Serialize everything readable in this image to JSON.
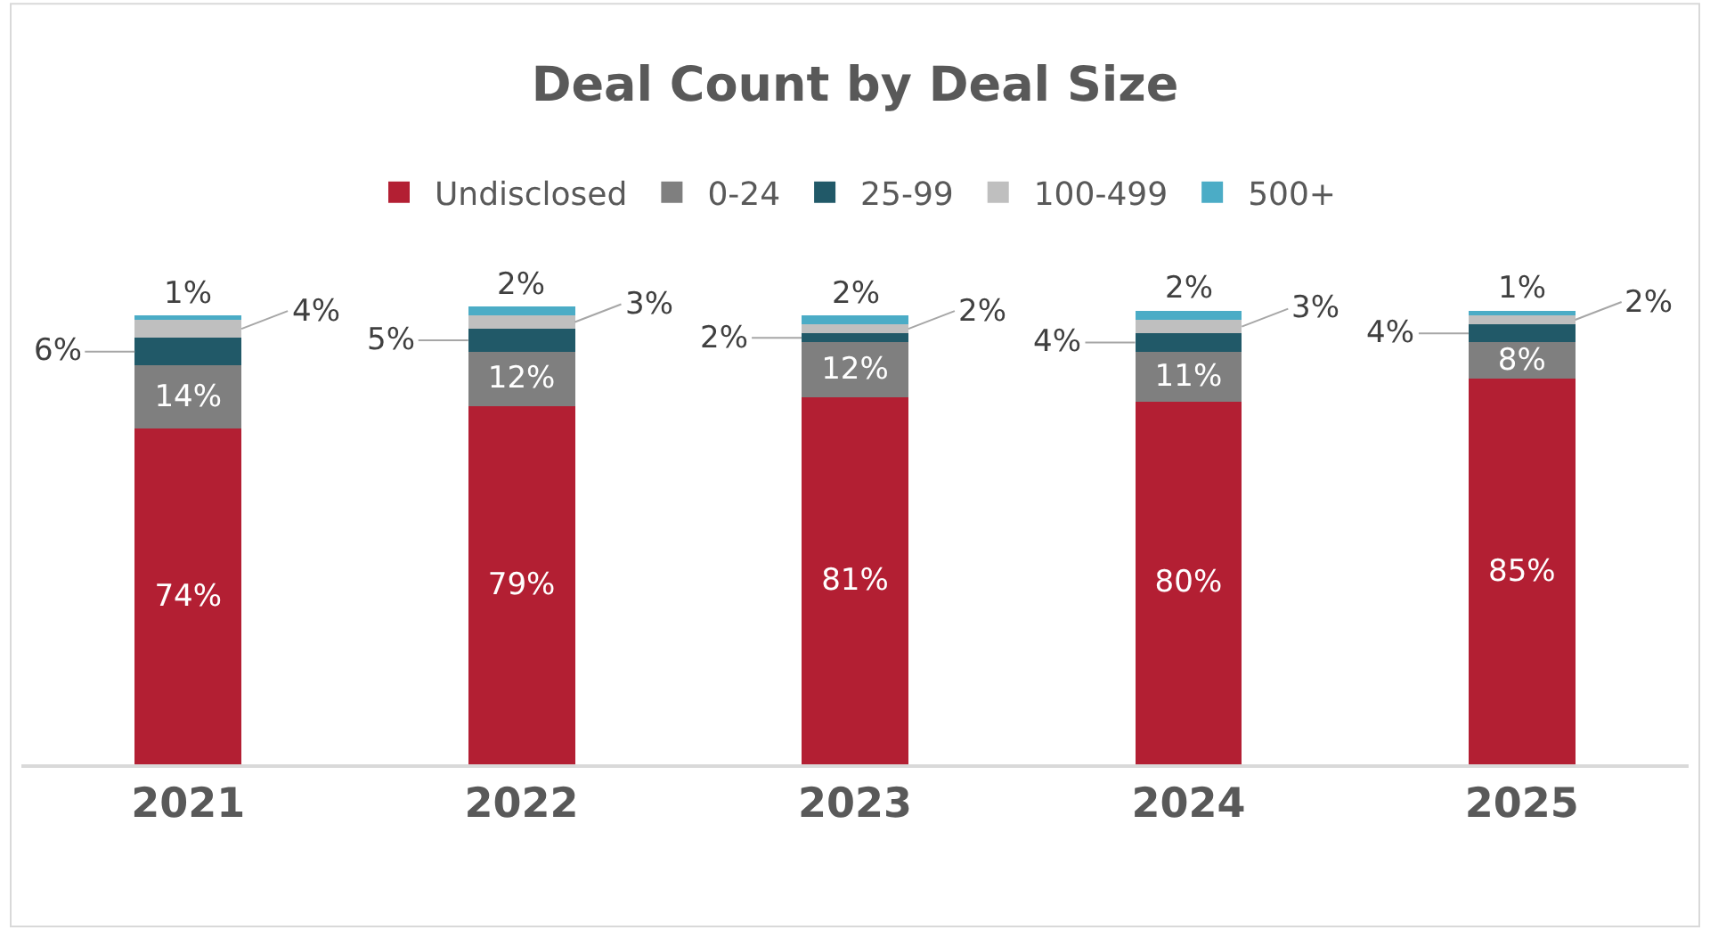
{
  "chart_data": {
    "type": "bar",
    "stacked": true,
    "title": "Deal Count by Deal Size",
    "categories": [
      "2021",
      "2022",
      "2023",
      "2024",
      "2025"
    ],
    "series": [
      {
        "name": "Undisclosed",
        "color": "#b31f33",
        "values": [
          74,
          79,
          81,
          80,
          85
        ],
        "value_labels": [
          "74%",
          "79%",
          "81%",
          "80%",
          "85%"
        ]
      },
      {
        "name": "0-24",
        "color": "#7f7f7f",
        "values": [
          14,
          12,
          12,
          11,
          8
        ],
        "value_labels": [
          "14%",
          "12%",
          "12%",
          "11%",
          "8%"
        ]
      },
      {
        "name": "25-99",
        "color": "#215968",
        "values": [
          6,
          5,
          2,
          4,
          4
        ],
        "value_labels": [
          "6%",
          "5%",
          "2%",
          "4%",
          "4%"
        ]
      },
      {
        "name": "100-499",
        "color": "#bfbfbf",
        "values": [
          4,
          3,
          2,
          3,
          2
        ],
        "value_labels": [
          "4%",
          "3%",
          "2%",
          "3%",
          "2%"
        ]
      },
      {
        "name": "500+",
        "color": "#4bacc6",
        "values": [
          1,
          2,
          2,
          2,
          1
        ],
        "value_labels": [
          "1%",
          "2%",
          "2%",
          "2%",
          "1%"
        ]
      }
    ],
    "legend": "top"
  }
}
